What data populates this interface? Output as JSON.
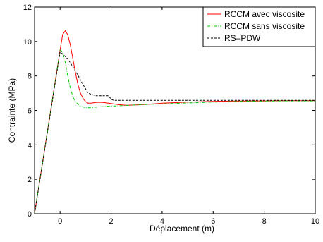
{
  "chart_data": {
    "type": "line",
    "title": "",
    "xlabel": "Déplacement (m)",
    "ylabel": "Contrainte (MPa)",
    "xlim": [
      -1,
      10
    ],
    "ylim": [
      0,
      12
    ],
    "xticks": [
      0,
      2,
      4,
      6,
      8,
      10
    ],
    "yticks": [
      0,
      2,
      4,
      6,
      8,
      10,
      12
    ],
    "grid": false,
    "legend_position": "top-right",
    "series": [
      {
        "name": "RCCM avec viscosite",
        "color": "#ff0000",
        "dash": "solid",
        "x": [
          -1.0,
          -0.5,
          0.0,
          0.1,
          0.2,
          0.3,
          0.4,
          0.5,
          0.6,
          0.7,
          0.8,
          0.9,
          1.0,
          1.1,
          1.2,
          1.4,
          1.6,
          1.8,
          2.0,
          2.3,
          2.6,
          3.0,
          3.5,
          4.0,
          5.0,
          6.0,
          7.0,
          8.0,
          9.0,
          10.0
        ],
        "y": [
          0.0,
          4.75,
          9.5,
          10.4,
          10.62,
          10.4,
          9.8,
          9.0,
          8.2,
          7.5,
          7.0,
          6.7,
          6.5,
          6.42,
          6.42,
          6.46,
          6.47,
          6.44,
          6.4,
          6.33,
          6.3,
          6.32,
          6.36,
          6.42,
          6.48,
          6.52,
          6.54,
          6.55,
          6.56,
          6.56
        ]
      },
      {
        "name": "RCCM sans viscosite",
        "color": "#00cc00",
        "dash": "dashdot",
        "x": [
          -1.0,
          -0.5,
          0.0,
          0.1,
          0.2,
          0.3,
          0.4,
          0.5,
          0.6,
          0.8,
          1.0,
          1.2,
          1.5,
          2.0,
          2.5,
          3.0,
          4.0,
          5.0,
          6.0,
          7.0,
          8.0,
          9.0,
          10.0
        ],
        "y": [
          0.0,
          4.75,
          9.5,
          9.4,
          8.8,
          8.0,
          7.3,
          6.8,
          6.5,
          6.25,
          6.15,
          6.15,
          6.2,
          6.25,
          6.28,
          6.32,
          6.38,
          6.43,
          6.48,
          6.52,
          6.54,
          6.55,
          6.55
        ]
      },
      {
        "name": "RS–PDW",
        "color": "#000000",
        "dash": "dashed",
        "x": [
          -1.0,
          -0.5,
          0.0,
          0.3,
          0.6,
          0.9,
          1.1,
          1.4,
          1.9,
          2.0,
          2.1,
          3.0,
          4.0,
          5.0,
          6.0,
          7.0,
          8.0,
          9.0,
          10.0
        ],
        "y": [
          0.0,
          4.7,
          9.4,
          9.0,
          8.3,
          7.5,
          7.0,
          6.85,
          6.85,
          6.65,
          6.58,
          6.58,
          6.58,
          6.58,
          6.58,
          6.58,
          6.58,
          6.58,
          6.58
        ]
      }
    ]
  }
}
